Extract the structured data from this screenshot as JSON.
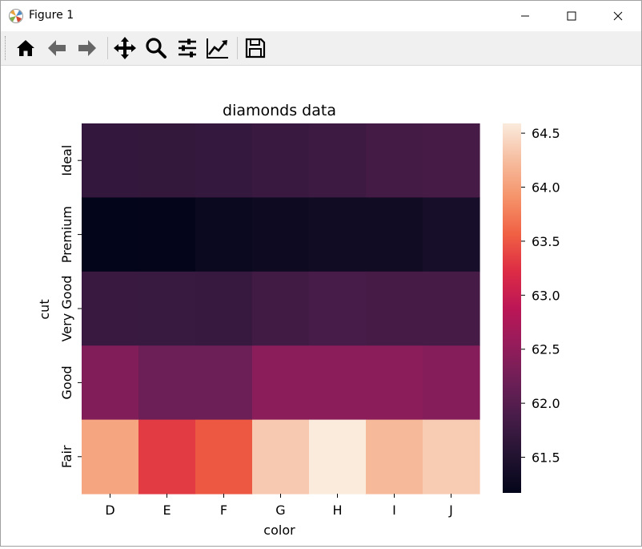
{
  "window": {
    "title": "Figure 1",
    "controls": [
      "minimize",
      "maximize",
      "close"
    ]
  },
  "toolbar": {
    "buttons": [
      {
        "name": "home",
        "icon": "home-icon"
      },
      {
        "name": "back",
        "icon": "arrow-left-icon"
      },
      {
        "name": "forward",
        "icon": "arrow-right-icon"
      },
      {
        "name": "pan",
        "icon": "move-icon"
      },
      {
        "name": "zoom",
        "icon": "magnifier-icon"
      },
      {
        "name": "configure-subplots",
        "icon": "sliders-icon"
      },
      {
        "name": "edit-axis",
        "icon": "line-chart-icon"
      },
      {
        "name": "save",
        "icon": "floppy-disk-icon"
      }
    ]
  },
  "chart_data": {
    "type": "heatmap",
    "title": "diamonds data",
    "xlabel": "color",
    "ylabel": "cut",
    "x": [
      "D",
      "E",
      "F",
      "G",
      "H",
      "I",
      "J"
    ],
    "y": [
      "Ideal",
      "Premium",
      "Very Good",
      "Good",
      "Fair"
    ],
    "values": [
      [
        61.68,
        61.69,
        61.7,
        61.74,
        61.77,
        61.83,
        61.86
      ],
      [
        61.17,
        61.18,
        61.26,
        61.29,
        61.32,
        61.32,
        61.39
      ],
      [
        61.75,
        61.73,
        61.72,
        61.82,
        61.88,
        61.86,
        61.86
      ],
      [
        62.37,
        62.2,
        62.2,
        62.45,
        62.45,
        62.45,
        62.4
      ],
      [
        64.05,
        63.32,
        63.51,
        64.34,
        64.59,
        64.22,
        64.36
      ]
    ],
    "colorbar": {
      "min": 61.17,
      "max": 64.59,
      "ticks": [
        "61.5",
        "62.0",
        "62.5",
        "63.0",
        "63.5",
        "64.0",
        "64.5"
      ],
      "colormap": "rocket"
    }
  }
}
